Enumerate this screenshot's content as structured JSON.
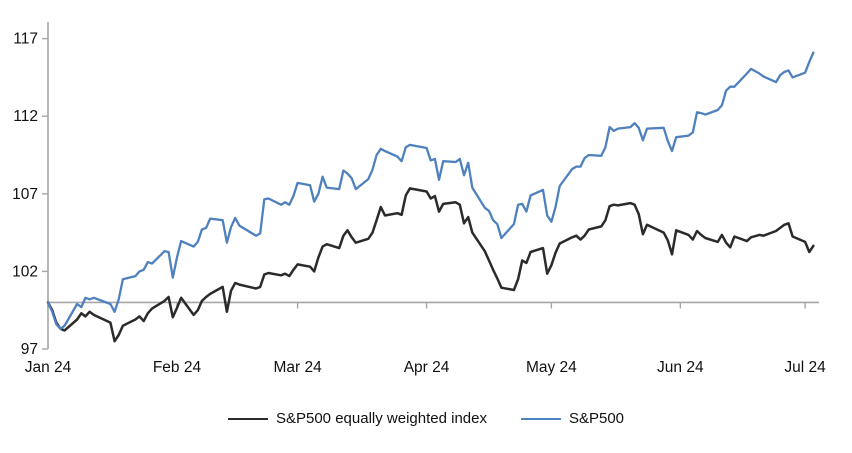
{
  "chart_data": {
    "type": "line",
    "title": "",
    "x_axis": {
      "labels": [
        "Jan 24",
        "Feb 24",
        "Mar 24",
        "Apr 24",
        "May 24",
        "Jun 24",
        "Jul 24"
      ],
      "tick_month_start_days": [
        0,
        31,
        60,
        91,
        121,
        152,
        182
      ]
    },
    "y_axis": {
      "ticks": [
        97,
        102,
        107,
        112,
        117
      ],
      "range": [
        97,
        118.1
      ]
    },
    "baseline_value": 100,
    "colors": {
      "axis": "#A6A6A6",
      "baseline": "#A6A6A6",
      "text": "#111111",
      "background": "#FFFFFF"
    },
    "dates": [
      "1-1",
      "1-2",
      "1-3",
      "1-4",
      "1-5",
      "1-8",
      "1-9",
      "1-10",
      "1-11",
      "1-12",
      "1-16",
      "1-17",
      "1-18",
      "1-19",
      "1-22",
      "1-23",
      "1-24",
      "1-25",
      "1-26",
      "1-29",
      "1-30",
      "1-31",
      "2-1",
      "2-2",
      "2-5",
      "2-6",
      "2-7",
      "2-8",
      "2-9",
      "2-12",
      "2-13",
      "2-14",
      "2-15",
      "2-16",
      "2-20",
      "2-21",
      "2-22",
      "2-23",
      "2-26",
      "2-27",
      "2-28",
      "2-29",
      "3-1",
      "3-4",
      "3-5",
      "3-6",
      "3-7",
      "3-8",
      "3-11",
      "3-12",
      "3-13",
      "3-14",
      "3-15",
      "3-18",
      "3-19",
      "3-20",
      "3-21",
      "3-22",
      "3-25",
      "3-26",
      "3-27",
      "3-28",
      "4-1",
      "4-2",
      "4-3",
      "4-4",
      "4-5",
      "4-8",
      "4-9",
      "4-10",
      "4-11",
      "4-12",
      "4-15",
      "4-16",
      "4-17",
      "4-18",
      "4-19",
      "4-22",
      "4-23",
      "4-24",
      "4-25",
      "4-26",
      "4-29",
      "4-30",
      "5-1",
      "5-2",
      "5-3",
      "5-6",
      "5-7",
      "5-8",
      "5-9",
      "5-10",
      "5-13",
      "5-14",
      "5-15",
      "5-16",
      "5-17",
      "5-20",
      "5-21",
      "5-22",
      "5-23",
      "5-24",
      "5-28",
      "5-29",
      "5-30",
      "5-31",
      "6-3",
      "6-4",
      "6-5",
      "6-6",
      "6-7",
      "6-10",
      "6-11",
      "6-12",
      "6-13",
      "6-14",
      "6-17",
      "6-18",
      "6-20",
      "6-21",
      "6-24",
      "6-25",
      "6-26",
      "6-27",
      "6-28",
      "7-1",
      "7-2",
      "7-3"
    ],
    "series": [
      {
        "name": "S&P500 equally weighted index",
        "color": "#2B2B2B",
        "values": [
          100.0,
          99.5,
          98.7,
          98.3,
          98.2,
          98.9,
          99.3,
          99.1,
          99.4,
          99.2,
          98.7,
          97.5,
          97.9,
          98.5,
          98.9,
          99.1,
          98.8,
          99.3,
          99.6,
          100.1,
          100.35,
          99.05,
          99.65,
          100.3,
          99.2,
          99.5,
          100.1,
          100.35,
          100.55,
          101.0,
          99.4,
          100.75,
          101.25,
          101.15,
          100.9,
          101.0,
          101.8,
          101.9,
          101.75,
          101.85,
          101.7,
          102.1,
          102.45,
          102.3,
          102.0,
          102.9,
          103.6,
          103.75,
          103.5,
          104.3,
          104.65,
          104.2,
          103.85,
          104.1,
          104.5,
          105.3,
          106.15,
          105.6,
          105.75,
          105.65,
          106.9,
          107.35,
          107.15,
          106.7,
          106.85,
          105.85,
          106.35,
          106.45,
          106.3,
          105.1,
          105.5,
          104.5,
          103.3,
          102.7,
          102.1,
          101.55,
          100.95,
          100.8,
          101.5,
          102.7,
          102.55,
          103.25,
          103.5,
          101.85,
          102.4,
          103.2,
          103.8,
          104.2,
          104.3,
          104.05,
          104.3,
          104.7,
          104.9,
          105.3,
          106.2,
          106.3,
          106.25,
          106.4,
          106.3,
          105.7,
          104.4,
          105.0,
          104.5,
          104.0,
          103.1,
          104.65,
          104.35,
          104.05,
          104.6,
          104.35,
          104.15,
          103.9,
          104.35,
          103.85,
          103.55,
          104.25,
          103.95,
          104.2,
          104.35,
          104.3,
          104.6,
          104.8,
          105.0,
          105.1,
          104.25,
          103.9,
          103.25,
          103.65
        ]
      },
      {
        "name": "S&P500",
        "color": "#4E81BD",
        "values": [
          100.0,
          99.4,
          98.6,
          98.3,
          98.5,
          99.9,
          99.7,
          100.3,
          100.2,
          100.3,
          99.9,
          99.4,
          100.2,
          101.5,
          101.7,
          102.0,
          102.1,
          102.6,
          102.5,
          103.3,
          103.25,
          101.6,
          102.9,
          103.95,
          103.6,
          103.9,
          104.7,
          104.8,
          105.4,
          105.3,
          103.85,
          104.85,
          105.45,
          104.95,
          104.3,
          104.45,
          106.65,
          106.7,
          106.3,
          106.45,
          106.3,
          106.85,
          107.7,
          107.55,
          106.5,
          107.0,
          108.1,
          107.4,
          107.3,
          108.5,
          108.3,
          108.0,
          107.3,
          107.95,
          108.55,
          109.5,
          109.9,
          109.75,
          109.4,
          109.1,
          110.0,
          110.15,
          109.95,
          109.15,
          109.25,
          107.9,
          109.1,
          109.05,
          109.25,
          108.2,
          109.0,
          107.4,
          106.1,
          105.9,
          105.3,
          105.05,
          104.15,
          105.05,
          106.3,
          106.35,
          105.85,
          106.9,
          107.25,
          105.6,
          105.2,
          106.15,
          107.5,
          108.6,
          108.75,
          108.75,
          109.3,
          109.5,
          109.45,
          110.0,
          111.3,
          111.05,
          111.2,
          111.3,
          111.55,
          111.25,
          110.45,
          111.2,
          111.25,
          110.4,
          109.75,
          110.65,
          110.75,
          110.95,
          112.25,
          112.2,
          112.1,
          112.4,
          112.7,
          113.65,
          113.9,
          113.9,
          114.75,
          115.05,
          114.75,
          114.55,
          114.2,
          114.65,
          114.85,
          114.95,
          114.5,
          114.8,
          115.5,
          116.1
        ]
      }
    ],
    "legend": [
      "S&P500 equally weighted index",
      "S&P500"
    ],
    "legend_position": "bottom-center",
    "grid": "off"
  }
}
